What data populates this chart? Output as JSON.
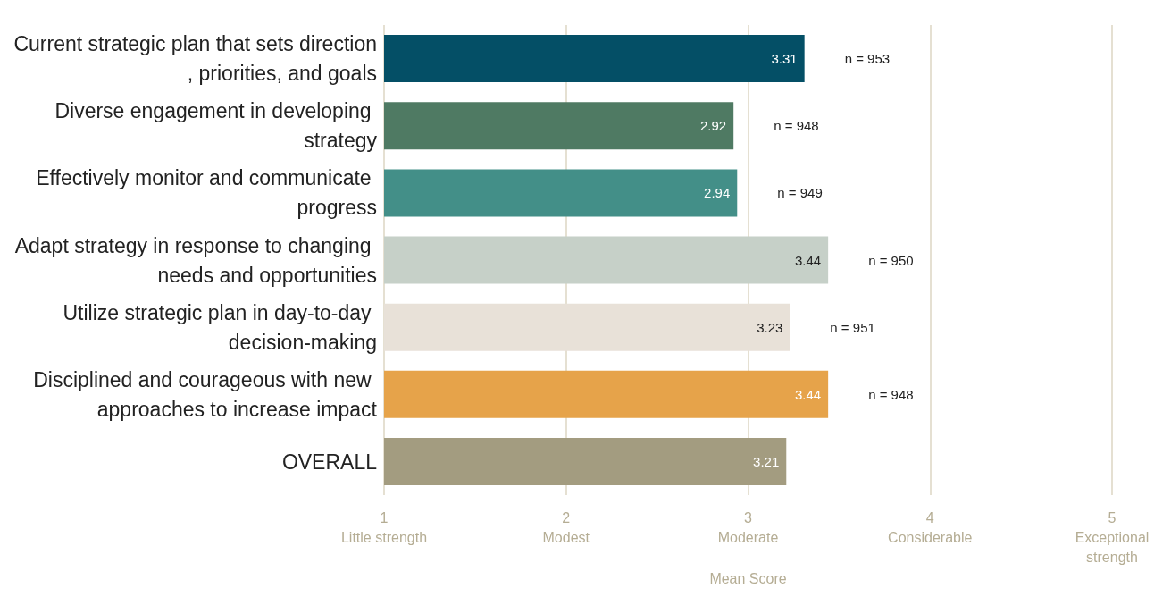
{
  "chart_data": {
    "type": "bar",
    "orientation": "horizontal",
    "xlabel": "Mean Score",
    "categories": [
      "Current strategic plan that sets direction, priorities, and goals",
      "Diverse engagement in developing strategy",
      "Effectively monitor and communicate progress",
      "Adapt strategy in response to changing needs and opportunities",
      "Utilize strategic plan in day-to-day decision-making",
      "Disciplined and courageous with new approaches to increase impact",
      "OVERALL"
    ],
    "values": [
      3.31,
      2.92,
      2.94,
      3.44,
      3.23,
      3.44,
      3.21
    ],
    "colors": [
      "#044f66",
      "#4f7a63",
      "#438f88",
      "#c6d0c8",
      "#e8e1d8",
      "#e6a34a",
      "#a39c80"
    ],
    "data_labels": true,
    "xlim": [
      1,
      5
    ],
    "xticks": [
      {
        "value": 1,
        "label": "1\nLittle strength"
      },
      {
        "value": 2,
        "label": "2\nModest"
      },
      {
        "value": 3,
        "label": "3\nModerate"
      },
      {
        "value": 4,
        "label": "4\nConsiderable"
      },
      {
        "value": 5,
        "label": "5\nExceptional\nstrength"
      }
    ],
    "grid": "x",
    "annotations": [
      {
        "text": "n = 953",
        "x": 3.31,
        "y": "Current strategic plan that sets direction, priorities, and goals"
      },
      {
        "text": "n = 948",
        "x": 2.92,
        "y": "Diverse engagement in developing strategy"
      },
      {
        "text": "n = 949",
        "x": 2.94,
        "y": "Effectively monitor and communicate progress"
      },
      {
        "text": "n = 950",
        "x": 3.44,
        "y": "Adapt strategy in response to changing needs and opportunities"
      },
      {
        "text": "n = 951",
        "x": 3.23,
        "y": "Utilize strategic plan in day-to-day decision-making"
      },
      {
        "text": "n = 948",
        "x": 3.44,
        "y": "Disciplined and courageous with new approaches to increase impact"
      }
    ]
  }
}
